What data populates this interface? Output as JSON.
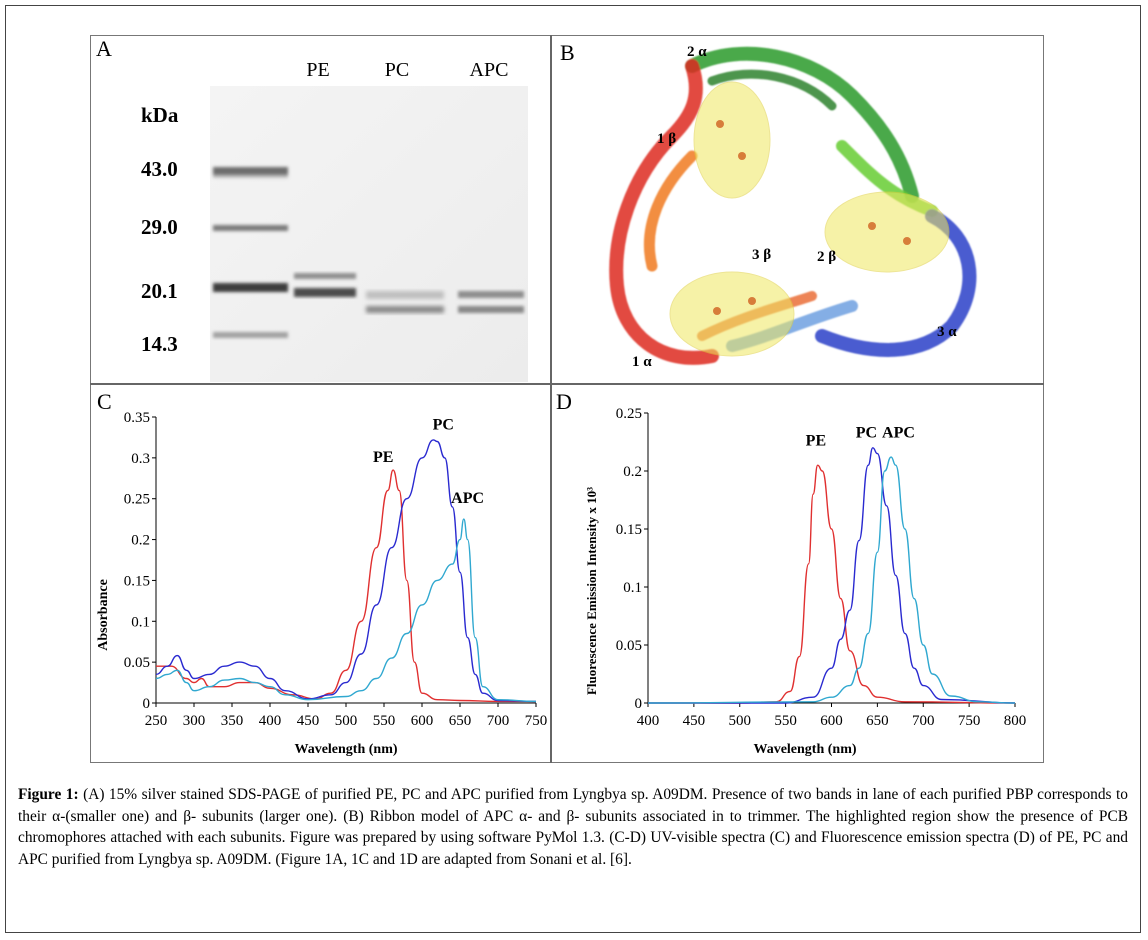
{
  "panel_a": {
    "letter": "A",
    "lanes": [
      "PE",
      "PC",
      "APC"
    ],
    "unit_label": "kDa",
    "markers": [
      "43.0",
      "29.0",
      "20.1",
      "14.3"
    ]
  },
  "panel_b": {
    "letter": "B",
    "labels": [
      "2 α",
      "1 β",
      "2 β",
      "3 β",
      "1 α",
      "3 α"
    ]
  },
  "panel_c": {
    "letter": "C",
    "ylabel": "Absorbance",
    "xlabel": "Wavelength (nm)",
    "yticks": [
      "0.35",
      "0.3",
      "0.25",
      "0.2",
      "0.15",
      "0.1",
      "0.05",
      "0"
    ],
    "xticks": [
      "250",
      "300",
      "350",
      "400",
      "450",
      "500",
      "550",
      "600",
      "650",
      "700",
      "750"
    ],
    "series_labels": [
      "PE",
      "PC",
      "APC"
    ]
  },
  "panel_d": {
    "letter": "D",
    "ylabel": "Fluorescence Emission Intensity x 10³",
    "xlabel": "Wavelength (nm)",
    "yticks": [
      "0.25",
      "0.2",
      "0.15",
      "0.1",
      "0.05",
      "0"
    ],
    "xticks": [
      "400",
      "450",
      "500",
      "550",
      "600",
      "650",
      "700",
      "750",
      "800"
    ],
    "series_labels": [
      "PE",
      "PC",
      "APC"
    ]
  },
  "chart_data": [
    {
      "type": "line",
      "xlabel": "Wavelength (nm)",
      "ylabel": "Absorbance",
      "xlim": [
        250,
        750
      ],
      "ylim": [
        0,
        0.35
      ],
      "series": [
        {
          "name": "PE",
          "color": "#e03030",
          "x": [
            250,
            270,
            290,
            300,
            310,
            320,
            340,
            360,
            380,
            400,
            430,
            460,
            480,
            500,
            520,
            540,
            555,
            562,
            570,
            580,
            590,
            600,
            620,
            650,
            700,
            750
          ],
          "y": [
            0.045,
            0.045,
            0.03,
            0.025,
            0.03,
            0.02,
            0.02,
            0.025,
            0.025,
            0.018,
            0.01,
            0.005,
            0.012,
            0.04,
            0.1,
            0.19,
            0.26,
            0.285,
            0.26,
            0.15,
            0.05,
            0.012,
            0.004,
            0.003,
            0.002,
            0.002
          ]
        },
        {
          "name": "PC",
          "color": "#2a2ad0",
          "x": [
            250,
            265,
            278,
            290,
            300,
            320,
            340,
            360,
            380,
            400,
            420,
            450,
            480,
            500,
            520,
            540,
            560,
            580,
            600,
            615,
            620,
            630,
            640,
            650,
            660,
            670,
            680,
            700,
            750
          ],
          "y": [
            0.035,
            0.045,
            0.058,
            0.04,
            0.03,
            0.035,
            0.045,
            0.05,
            0.045,
            0.03,
            0.015,
            0.005,
            0.01,
            0.025,
            0.06,
            0.12,
            0.19,
            0.25,
            0.3,
            0.322,
            0.32,
            0.3,
            0.24,
            0.16,
            0.08,
            0.035,
            0.012,
            0.003,
            0.002
          ]
        },
        {
          "name": "APC",
          "color": "#30a8d0",
          "x": [
            250,
            265,
            278,
            290,
            300,
            320,
            340,
            360,
            380,
            400,
            420,
            450,
            500,
            520,
            540,
            560,
            580,
            600,
            620,
            640,
            650,
            655,
            660,
            670,
            680,
            700,
            750
          ],
          "y": [
            0.03,
            0.035,
            0.04,
            0.025,
            0.015,
            0.02,
            0.028,
            0.03,
            0.025,
            0.02,
            0.01,
            0.004,
            0.008,
            0.015,
            0.03,
            0.055,
            0.085,
            0.12,
            0.15,
            0.17,
            0.2,
            0.225,
            0.2,
            0.08,
            0.02,
            0.004,
            0.002
          ]
        }
      ],
      "annotations": [
        "PE",
        "PC",
        "APC"
      ]
    },
    {
      "type": "line",
      "xlabel": "Wavelength (nm)",
      "ylabel": "Fluorescence Emission Intensity x 10³",
      "xlim": [
        400,
        800
      ],
      "ylim": [
        0,
        0.25
      ],
      "series": [
        {
          "name": "PE",
          "color": "#e03030",
          "x": [
            400,
            500,
            540,
            555,
            565,
            575,
            580,
            585,
            590,
            600,
            610,
            620,
            635,
            650,
            680,
            800
          ],
          "y": [
            0,
            0,
            0.001,
            0.01,
            0.04,
            0.12,
            0.18,
            0.205,
            0.2,
            0.15,
            0.09,
            0.045,
            0.015,
            0.005,
            0.001,
            0
          ]
        },
        {
          "name": "PC",
          "color": "#2a2ad0",
          "x": [
            400,
            550,
            580,
            600,
            610,
            620,
            630,
            640,
            645,
            650,
            660,
            670,
            680,
            690,
            700,
            720,
            800
          ],
          "y": [
            0,
            0,
            0.005,
            0.03,
            0.055,
            0.08,
            0.14,
            0.205,
            0.22,
            0.215,
            0.17,
            0.11,
            0.06,
            0.03,
            0.015,
            0.003,
            0
          ]
        },
        {
          "name": "APC",
          "color": "#30a8d0",
          "x": [
            400,
            580,
            600,
            620,
            630,
            640,
            650,
            658,
            665,
            670,
            680,
            690,
            700,
            710,
            730,
            760,
            800
          ],
          "y": [
            0,
            0.001,
            0.005,
            0.015,
            0.03,
            0.06,
            0.13,
            0.2,
            0.212,
            0.205,
            0.15,
            0.09,
            0.05,
            0.025,
            0.006,
            0.001,
            0
          ]
        }
      ],
      "annotations": [
        "PE",
        "PC",
        "APC"
      ]
    }
  ],
  "caption": {
    "label": "Figure 1:",
    "text": "(A) 15% silver stained SDS-PAGE of purified PE, PC and APC purified from Lyngbya sp. A09DM. Presence of two bands in lane of each purified PBP corresponds to their α-(smaller one) and β- subunits (larger one). (B) Ribbon model of APC α- and β- subunits associated in to trimmer. The highlighted region show the presence of PCB chromophores attached with each subunits. Figure was prepared by using software PyMol 1.3. (C-D) UV-visible spectra (C) and Fluorescence emission spectra (D) of PE, PC and APC purified from Lyngbya sp. A09DM. (Figure 1A, 1C and 1D are adapted from Sonani et al. [6]."
  }
}
